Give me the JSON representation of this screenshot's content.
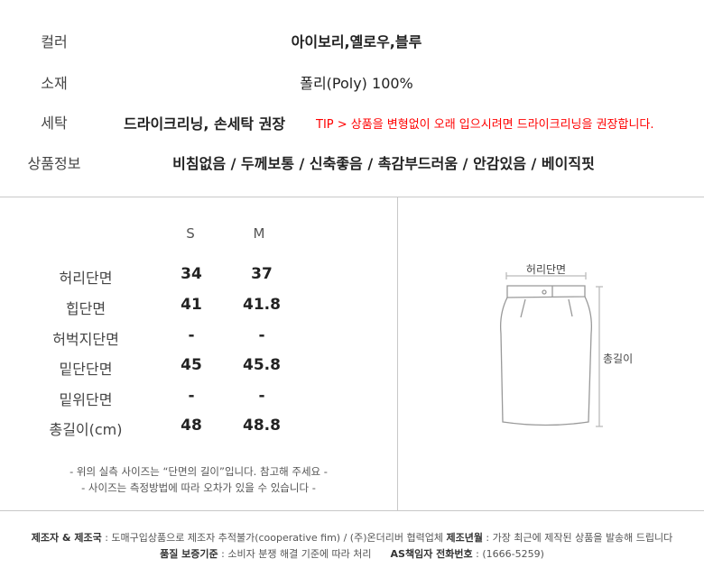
{
  "info": {
    "rows": [
      {
        "label": "컬러",
        "value": "아이보리,옐로우,블루"
      },
      {
        "label": "소재",
        "value": "폴리(Poly) 100%"
      },
      {
        "label": "세탁",
        "value": "드라이크리닝, 손세탁 권장",
        "tip": "TIP > 상품을 변형없이 오래 입으시려면 드라이크리닝을 권장합니다."
      },
      {
        "label": "상품정보",
        "value": "비침없음 / 두께보통 / 신축좋음 / 촉감부드러움 / 안감있음 / 베이직핏"
      }
    ],
    "tip_color": "#ff0000"
  },
  "size_table": {
    "headers": [
      "S",
      "M"
    ],
    "rows": [
      {
        "label": "허리단면",
        "values": [
          "34",
          "37"
        ]
      },
      {
        "label": "힙단면",
        "values": [
          "41",
          "41.8"
        ]
      },
      {
        "label": "허벅지단면",
        "values": [
          "-",
          "-"
        ]
      },
      {
        "label": "밑단단면",
        "values": [
          "45",
          "45.8"
        ]
      },
      {
        "label": "밑위단면",
        "values": [
          "-",
          "-"
        ]
      },
      {
        "label": "총길이(cm)",
        "values": [
          "48",
          "48.8"
        ]
      }
    ],
    "notes": [
      "- 위의 실측 사이즈는 “단면의 길이”입니다. 참고해 주세요 -",
      "- 사이즈는 측정방법에 따라 오차가 있을 수 있습니다 -"
    ]
  },
  "diagram": {
    "waist_label": "허리단면",
    "length_label": "총길이",
    "icon": "skirt-diagram"
  },
  "footer": {
    "line1": [
      {
        "key": "제조자 & 제조국",
        "value": " : 도매구입상품으로 제조자 추적불가(cooperative fim) / (주)온더리버 협력업체 "
      },
      {
        "key": "제조년월",
        "value": " : 가장 최근에 제작된 상품을 발송해 드립니다"
      }
    ],
    "line2": [
      {
        "key": "품질 보증기준",
        "value": " : 소비자 분쟁 해결 기준에 따라 처리     "
      },
      {
        "key": "AS책임자 전화번호",
        "value": " : (1666-5259)"
      }
    ]
  }
}
